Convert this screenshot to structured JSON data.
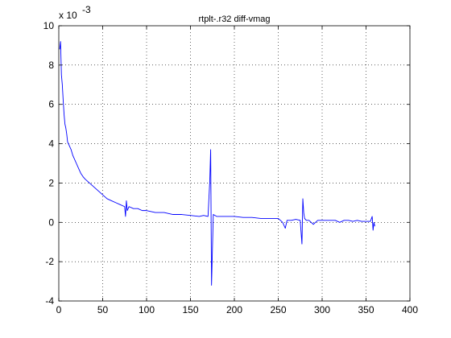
{
  "chart_data": {
    "type": "line",
    "title": "rtplt-.r32 diff-vmag",
    "xlabel": "",
    "ylabel": "",
    "xlim": [
      0,
      400
    ],
    "ylim": [
      -4,
      10
    ],
    "y_scale_label": {
      "base": "x 10",
      "exponent": "-3"
    },
    "grid": true,
    "x_ticks": [
      0,
      50,
      100,
      150,
      200,
      250,
      300,
      350,
      400
    ],
    "y_ticks": [
      -4,
      -2,
      0,
      2,
      4,
      6,
      8,
      10
    ],
    "x_tick_labels": [
      "0",
      "50",
      "100",
      "150",
      "200",
      "250",
      "300",
      "350",
      "400"
    ],
    "y_tick_labels": [
      "-4",
      "-2",
      "0",
      "2",
      "4",
      "6",
      "8",
      "10"
    ],
    "series": [
      {
        "color": "#0000ff",
        "x": [
          1,
          2,
          3,
          4,
          5,
          6,
          7,
          8,
          9,
          10,
          12,
          14,
          16,
          18,
          20,
          22,
          25,
          28,
          30,
          35,
          40,
          45,
          50,
          55,
          60,
          65,
          70,
          75,
          76,
          77,
          78,
          80,
          85,
          90,
          95,
          100,
          110,
          120,
          130,
          140,
          150,
          160,
          165,
          170,
          172,
          173,
          174,
          175,
          176,
          180,
          190,
          200,
          210,
          220,
          230,
          240,
          250,
          255,
          258,
          260,
          265,
          270,
          275,
          277,
          278,
          279,
          280,
          282,
          285,
          290,
          295,
          300,
          305,
          310,
          315,
          320,
          325,
          330,
          335,
          340,
          345,
          350,
          355,
          357,
          358,
          359,
          360
        ],
        "values": [
          8.8,
          9.2,
          7.5,
          7.0,
          6.2,
          5.5,
          5.0,
          4.8,
          4.5,
          4.1,
          3.9,
          3.7,
          3.4,
          3.2,
          3.0,
          2.8,
          2.5,
          2.3,
          2.2,
          2.0,
          1.8,
          1.6,
          1.4,
          1.2,
          1.1,
          1.0,
          0.9,
          0.8,
          0.3,
          1.1,
          0.6,
          0.8,
          0.7,
          0.7,
          0.6,
          0.6,
          0.5,
          0.5,
          0.4,
          0.4,
          0.35,
          0.3,
          0.35,
          0.3,
          2.1,
          3.7,
          -3.2,
          -1.4,
          0.4,
          0.3,
          0.3,
          0.3,
          0.25,
          0.25,
          0.2,
          0.2,
          0.2,
          0.0,
          -0.3,
          0.1,
          0.1,
          0.15,
          0.1,
          -1.1,
          1.2,
          0.5,
          0.2,
          0.1,
          0.1,
          -0.1,
          0.1,
          0.1,
          0.1,
          0.1,
          0.1,
          0.0,
          0.1,
          0.1,
          0.05,
          0.1,
          0.05,
          0.05,
          0.05,
          0.3,
          -0.4,
          0.0,
          -0.2
        ]
      }
    ]
  }
}
